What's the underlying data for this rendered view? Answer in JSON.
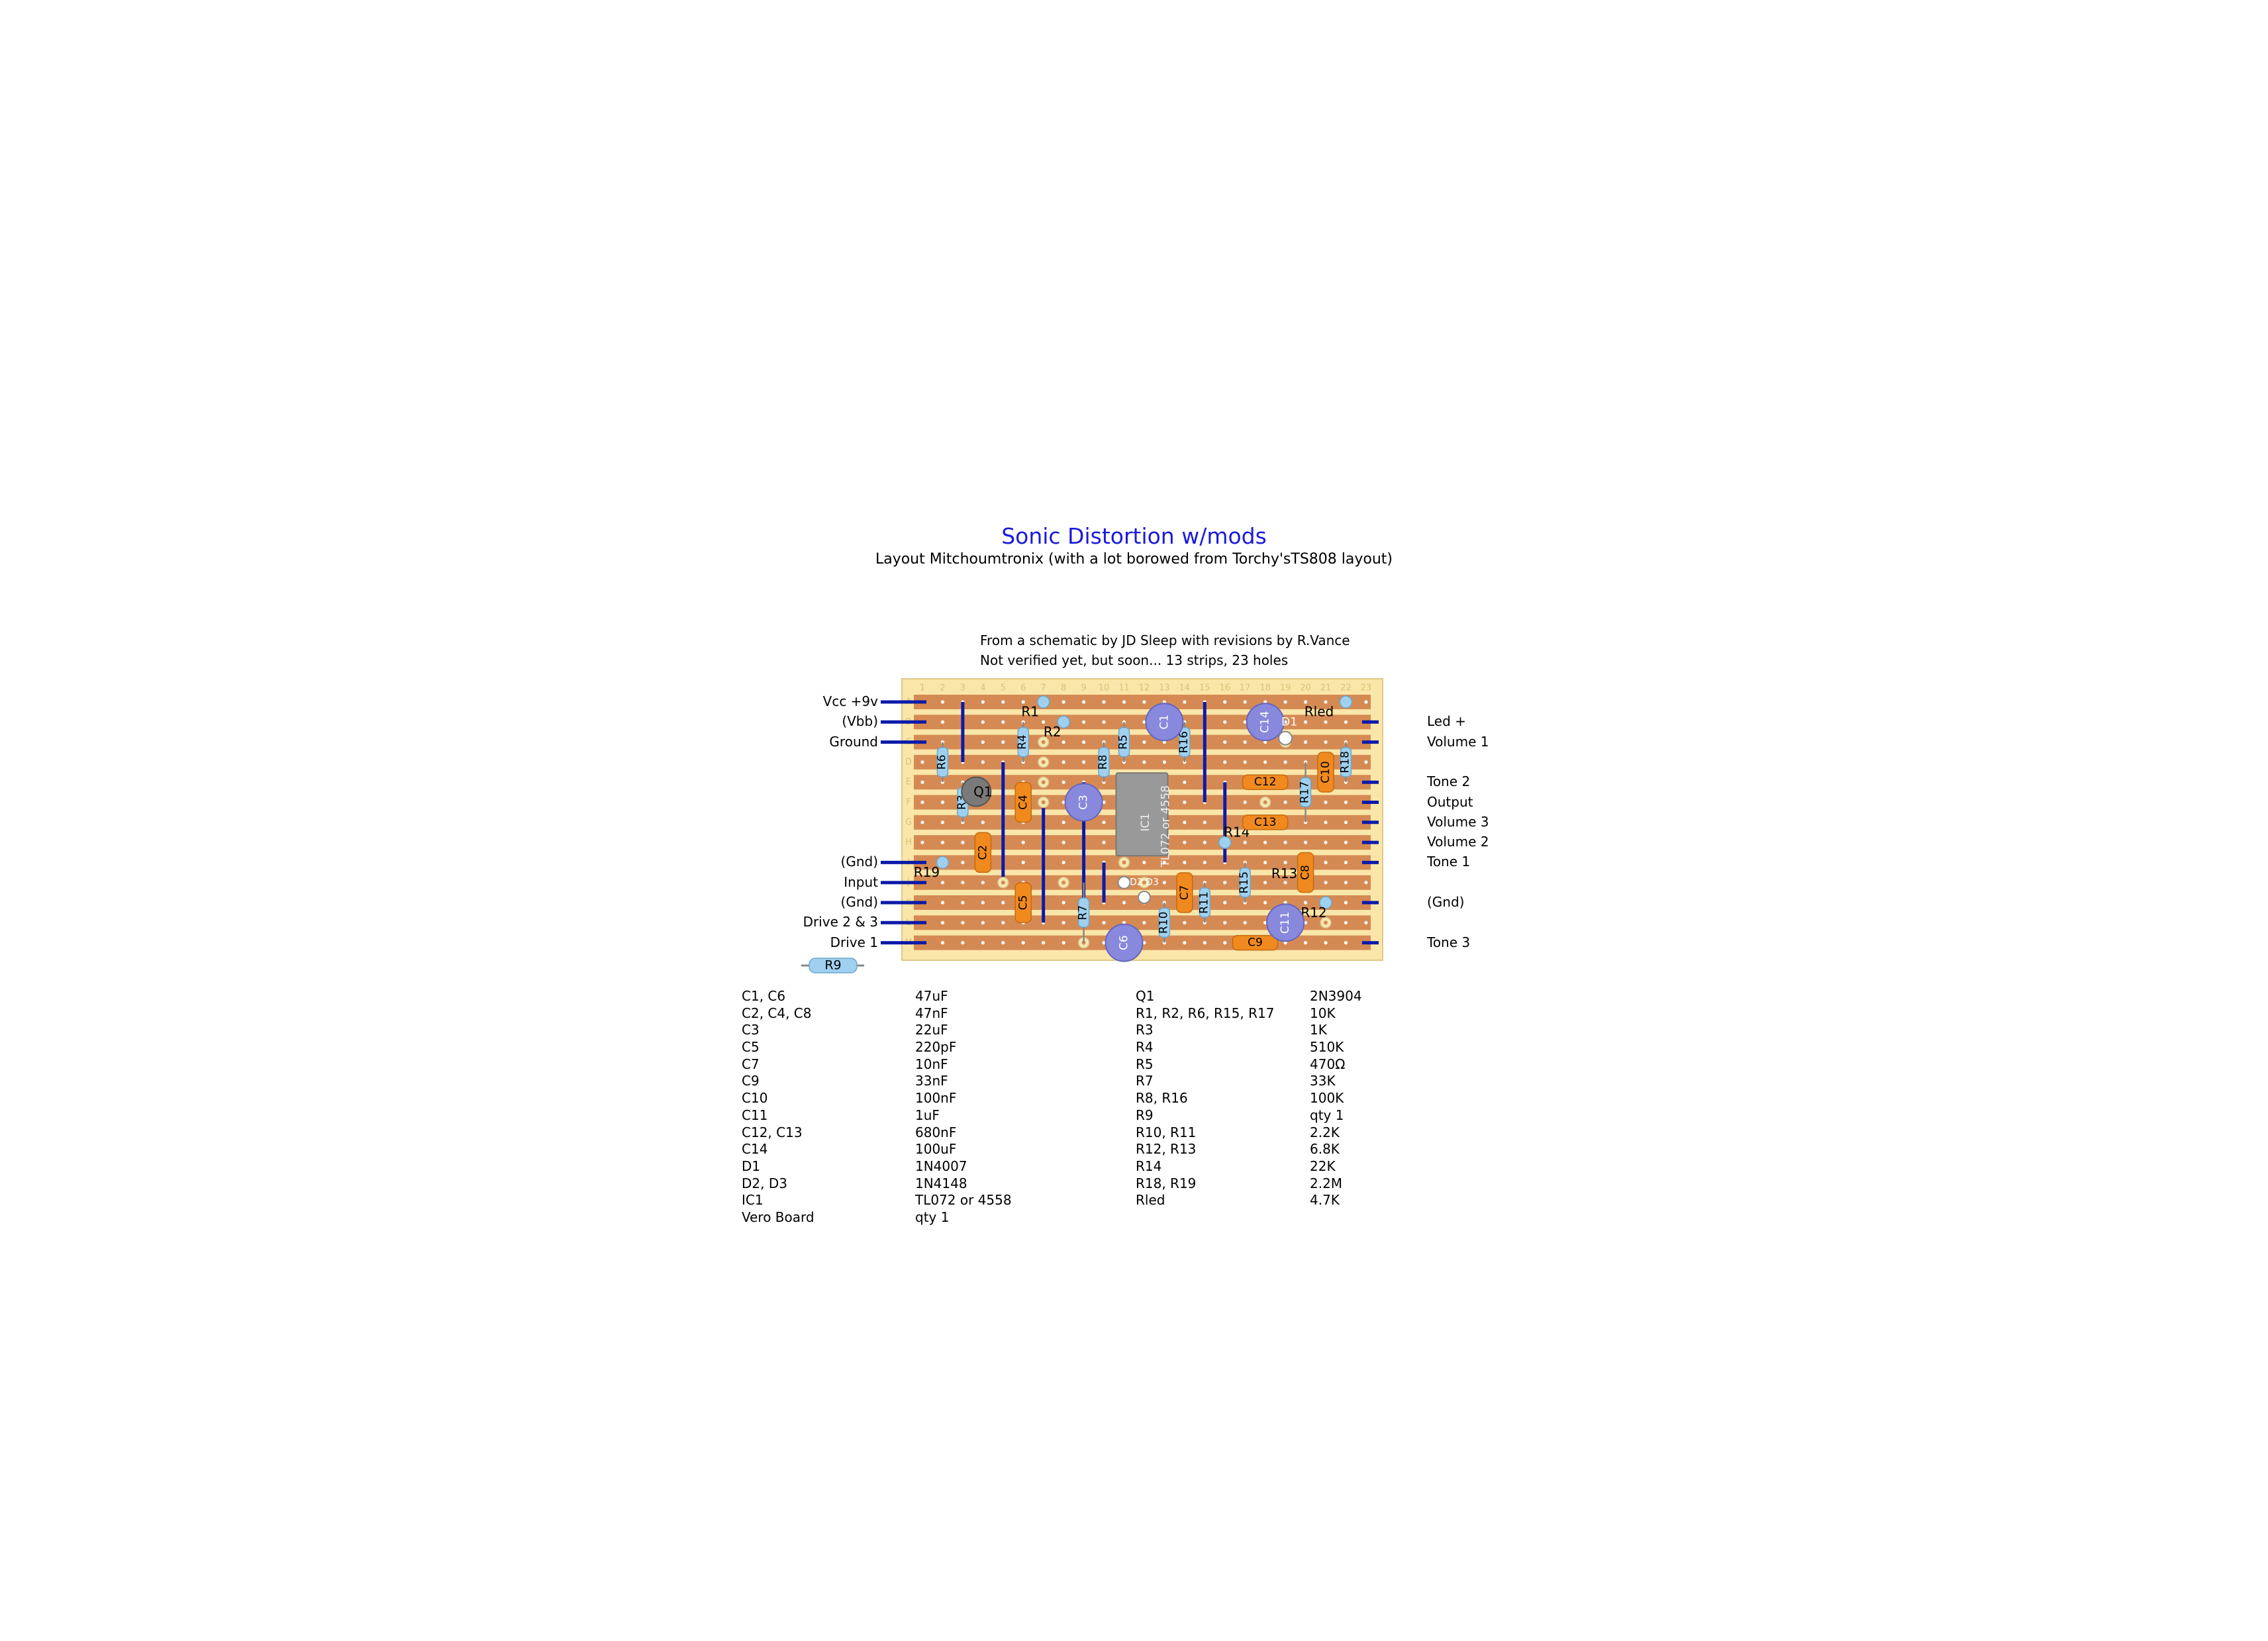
{
  "title": "Sonic Distortion w/mods",
  "subtitle": "Layout Mitchoumtronix (with a lot borowed from Torchy'sTS808 layout)",
  "notes": [
    "From a schematic by JD Sleep with revisions by R.Vance",
    "Not verified yet, but soon...    13 strips, 23 holes"
  ],
  "board": {
    "strips": 13,
    "holes": 23,
    "hole_numbers": [
      "1",
      "2",
      "3",
      "4",
      "5",
      "6",
      "7",
      "8",
      "9",
      "10",
      "11",
      "12",
      "13",
      "14",
      "15",
      "16",
      "17",
      "18",
      "19",
      "20",
      "21",
      "22",
      "23"
    ],
    "strip_letters": [
      "A",
      "B",
      "C",
      "D",
      "E",
      "F",
      "G",
      "H",
      "I",
      "J",
      "K",
      "L",
      "M"
    ],
    "colors": {
      "board": "#fae6a8",
      "strip": "#d58a54",
      "hole": "#ffffff",
      "wire": "#0b1aa8",
      "resistor": "#9fd0f0",
      "cap_film": "#f08a1e",
      "cap_elec": "#8888dd",
      "ic": "#999999"
    }
  },
  "left_pins": [
    {
      "label": "Vcc +9v",
      "strip": 1
    },
    {
      "label": "(Vbb)",
      "strip": 2
    },
    {
      "label": "Ground",
      "strip": 3
    },
    {
      "label": "(Gnd)",
      "strip": 9
    },
    {
      "label": "Input",
      "strip": 10
    },
    {
      "label": "(Gnd)",
      "strip": 11
    },
    {
      "label": "Drive 2 & 3",
      "strip": 12
    },
    {
      "label": "Drive 1",
      "strip": 13
    }
  ],
  "right_pins": [
    {
      "label": "Led +",
      "strip": 2
    },
    {
      "label": "Volume 1",
      "strip": 3
    },
    {
      "label": "Tone 2",
      "strip": 5
    },
    {
      "label": "Output",
      "strip": 6
    },
    {
      "label": "Volume 3",
      "strip": 7
    },
    {
      "label": "Volume 2",
      "strip": 8
    },
    {
      "label": "Tone 1",
      "strip": 9
    },
    {
      "label": "(Gnd)",
      "strip": 11
    },
    {
      "label": "Tone 3",
      "strip": 13
    }
  ],
  "component_labels": {
    "R1": "R1",
    "R2": "R2",
    "R3": "R3",
    "R4": "R4",
    "R5": "R5",
    "R6": "R6",
    "R7": "R7",
    "R8": "R8",
    "R10": "R10",
    "R11": "R11",
    "R12": "R12",
    "R13": "R13",
    "R14": "R14",
    "R15": "R15",
    "R16": "R16",
    "R17": "R17",
    "R18": "R18",
    "R19": "R19",
    "Rled": "Rled",
    "C1": "C1",
    "C2": "C2",
    "C3": "C3",
    "C4": "C4",
    "C5": "C5",
    "C6": "C6",
    "C7": "C7",
    "C8": "C8",
    "C9": "C9",
    "C10": "C10",
    "C11": "C11",
    "C12": "C12",
    "C13": "C13",
    "C14": "C14",
    "Q1": "Q1",
    "D1": "D1",
    "D2": "D2",
    "D3": "D3",
    "IC1": "IC1",
    "IC1_part": "TL072 or 4558",
    "R9": "R9"
  },
  "bom_left": [
    {
      "ref": "C1, C6",
      "value": "47uF"
    },
    {
      "ref": "C2, C4, C8",
      "value": "47nF"
    },
    {
      "ref": "C3",
      "value": "22uF"
    },
    {
      "ref": "C5",
      "value": "220pF"
    },
    {
      "ref": "C7",
      "value": "10nF"
    },
    {
      "ref": "C9",
      "value": "33nF"
    },
    {
      "ref": "C10",
      "value": "100nF"
    },
    {
      "ref": "C11",
      "value": "1uF"
    },
    {
      "ref": "C12, C13",
      "value": "680nF"
    },
    {
      "ref": "C14",
      "value": "100uF"
    },
    {
      "ref": "D1",
      "value": "1N4007"
    },
    {
      "ref": "D2, D3",
      "value": "1N4148"
    },
    {
      "ref": "IC1",
      "value": "TL072 or 4558"
    },
    {
      "ref": "Vero Board",
      "value": "qty 1"
    }
  ],
  "bom_right": [
    {
      "ref": "Q1",
      "value": "2N3904"
    },
    {
      "ref": "R1, R2, R6, R15, R17",
      "value": "10K"
    },
    {
      "ref": "R3",
      "value": "1K"
    },
    {
      "ref": "R4",
      "value": "510K"
    },
    {
      "ref": "R5",
      "value": "470Ω"
    },
    {
      "ref": "R7",
      "value": "33K"
    },
    {
      "ref": "R8, R16",
      "value": "100K"
    },
    {
      "ref": "R9",
      "value": "qty 1"
    },
    {
      "ref": "R10, R11",
      "value": "2.2K"
    },
    {
      "ref": "R12, R13",
      "value": "6.8K"
    },
    {
      "ref": "R14",
      "value": "22K"
    },
    {
      "ref": "R18, R19",
      "value": "2.2M"
    },
    {
      "ref": "Rled",
      "value": "4.7K"
    }
  ]
}
